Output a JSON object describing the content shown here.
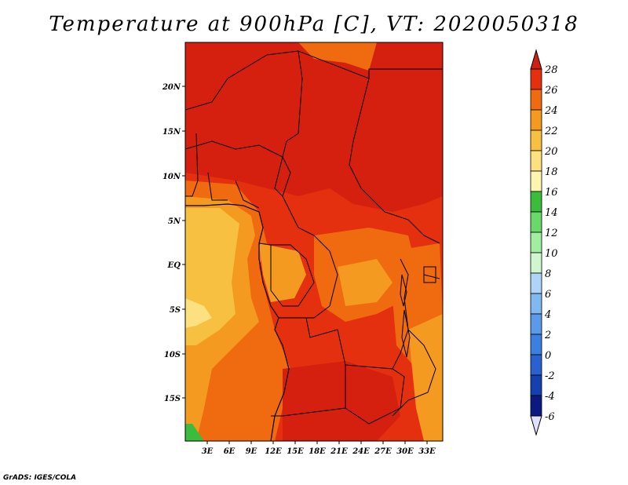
{
  "title": "Temperature at 900hPa [C], VT: 2020050318",
  "credit": "GrADS: IGES/COLA",
  "map": {
    "lat_labels": [
      "20N",
      "15N",
      "10N",
      "5N",
      "EQ",
      "5S",
      "10S",
      "15S"
    ],
    "lon_labels": [
      "3E",
      "6E",
      "9E",
      "12E",
      "15E",
      "18E",
      "21E",
      "24E",
      "27E",
      "30E",
      "33E"
    ]
  },
  "colorbar": {
    "levels": [
      "28",
      "26",
      "24",
      "22",
      "20",
      "18",
      "16",
      "14",
      "12",
      "10",
      "8",
      "6",
      "4",
      "2",
      "0",
      "-2",
      "-4",
      "-6"
    ],
    "colors": [
      "#d52010",
      "#e53010",
      "#f06a10",
      "#f59a20",
      "#f8c040",
      "#fde080",
      "#fff5b0",
      "#3cbc3c",
      "#6ad86a",
      "#a0ee9f",
      "#d0f6d0",
      "#b0d4f8",
      "#80b8f0",
      "#5a9ae8",
      "#3c7fe0",
      "#2a60d0",
      "#1440b0",
      "#0a1a80",
      "#06106a"
    ],
    "top_arrow_color": "#d02010",
    "bottom_arrow_color": "#e0e0ff"
  }
}
